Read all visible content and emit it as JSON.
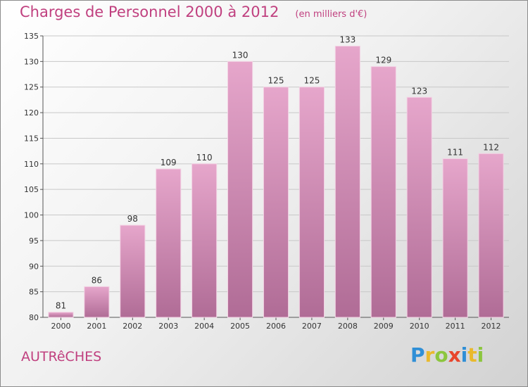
{
  "header": {
    "title": "Charges de Personnel 2000 à 2012",
    "unit": "(en milliers d'€)"
  },
  "footer": {
    "place": "AUTRêCHES",
    "logo": [
      {
        "char": "P",
        "color": "#2f8fd6"
      },
      {
        "char": "r",
        "color": "#e9b92d"
      },
      {
        "char": "o",
        "color": "#8cc63e"
      },
      {
        "char": "x",
        "color": "#e8452c"
      },
      {
        "char": "i",
        "color": "#2f8fd6"
      },
      {
        "char": "t",
        "color": "#e9b92d"
      },
      {
        "char": "i",
        "color": "#8cc63e"
      }
    ]
  },
  "colors": {
    "title": "#c0407f",
    "bar_top": "#e6a6cb",
    "bar_bottom": "#b06c96",
    "grid": "#c8c8c8"
  },
  "chart_data": {
    "type": "bar",
    "title": "Charges de Personnel 2000 à 2012",
    "subtitle": "(en milliers d'€)",
    "categories": [
      "2000",
      "2001",
      "2002",
      "2003",
      "2004",
      "2005",
      "2006",
      "2007",
      "2008",
      "2009",
      "2010",
      "2011",
      "2012"
    ],
    "values": [
      81,
      86,
      98,
      109,
      110,
      130,
      125,
      125,
      133,
      129,
      123,
      111,
      112
    ],
    "ylim": [
      80,
      135
    ],
    "yticks": [
      80,
      85,
      90,
      95,
      100,
      105,
      110,
      115,
      120,
      125,
      130,
      135
    ],
    "grid": true,
    "data_labels": true
  }
}
